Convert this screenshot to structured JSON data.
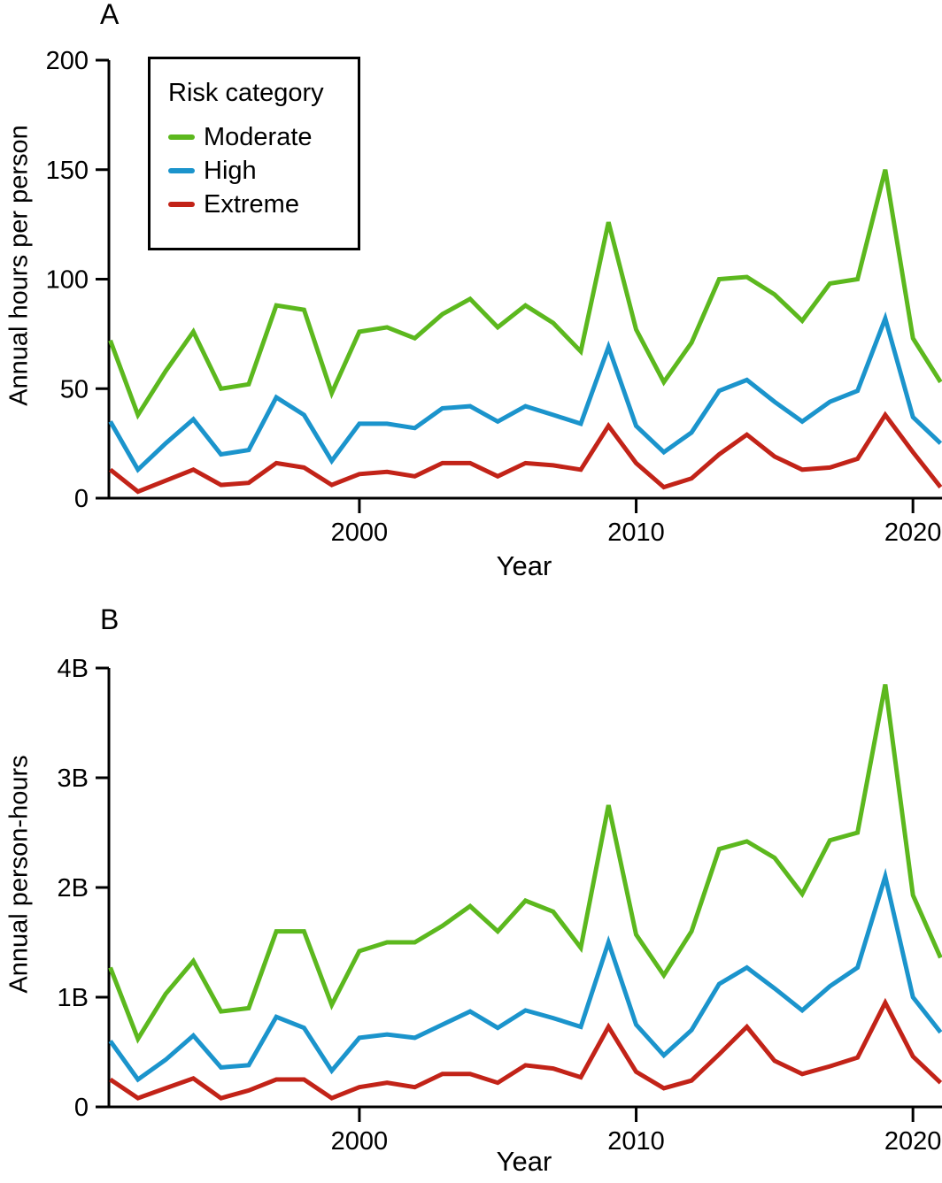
{
  "figure": {
    "background": "#ffffff",
    "text_color": "#000000"
  },
  "panels": [
    {
      "label": "A",
      "y_axis_title": "Annual hours per person",
      "x_axis_title": "Year"
    },
    {
      "label": "B",
      "y_axis_title": "Annual person-hours",
      "x_axis_title": "Year"
    }
  ],
  "legend": {
    "title": "Risk category",
    "items": [
      {
        "label": "Moderate",
        "color": "#5cb81e"
      },
      {
        "label": "High",
        "color": "#1b94cc"
      },
      {
        "label": "Extreme",
        "color": "#c22318"
      }
    ]
  },
  "chart_data": [
    {
      "type": "line",
      "panel": "A",
      "title": "",
      "xlabel": "Year",
      "ylabel": "Annual hours per person",
      "grid": false,
      "legend_position": "top-left",
      "xlim": [
        1990.95,
        2021.05
      ],
      "ylim": [
        0,
        200
      ],
      "xticks": [
        {
          "value": 2000,
          "label": "2000"
        },
        {
          "value": 2010,
          "label": "2010"
        },
        {
          "value": 2020,
          "label": "2020"
        }
      ],
      "yticks": [
        {
          "value": 0,
          "label": "0"
        },
        {
          "value": 50,
          "label": "50"
        },
        {
          "value": 100,
          "label": "100"
        },
        {
          "value": 150,
          "label": "150"
        },
        {
          "value": 200,
          "label": "200"
        }
      ],
      "x": [
        1991,
        1992,
        1993,
        1994,
        1995,
        1996,
        1997,
        1998,
        1999,
        2000,
        2001,
        2002,
        2003,
        2004,
        2005,
        2006,
        2007,
        2008,
        2009,
        2010,
        2011,
        2012,
        2013,
        2014,
        2015,
        2016,
        2017,
        2018,
        2019,
        2020,
        2021
      ],
      "series": [
        {
          "name": "Moderate",
          "color": "#5cb81e",
          "values": [
            72,
            38,
            58,
            76,
            50,
            52,
            88,
            86,
            48,
            76,
            78,
            73,
            84,
            91,
            78,
            88,
            80,
            67,
            126,
            77,
            53,
            71,
            100,
            101,
            93,
            81,
            98,
            100,
            150,
            73,
            53
          ]
        },
        {
          "name": "High",
          "color": "#1b94cc",
          "values": [
            35,
            13,
            25,
            36,
            20,
            22,
            46,
            38,
            17,
            34,
            34,
            32,
            41,
            42,
            35,
            42,
            38,
            34,
            69,
            33,
            21,
            30,
            49,
            54,
            44,
            35,
            44,
            49,
            82,
            37,
            25
          ]
        },
        {
          "name": "Extreme",
          "color": "#c22318",
          "values": [
            13,
            3,
            8,
            13,
            6,
            7,
            16,
            14,
            6,
            11,
            12,
            10,
            16,
            16,
            10,
            16,
            15,
            13,
            33,
            16,
            5,
            9,
            20,
            29,
            19,
            13,
            14,
            18,
            38,
            21,
            5
          ]
        }
      ]
    },
    {
      "type": "line",
      "panel": "B",
      "title": "",
      "xlabel": "Year",
      "ylabel": "Annual person-hours",
      "unit": "billions",
      "grid": false,
      "xlim": [
        1990.95,
        2021.05
      ],
      "ylim": [
        0,
        4
      ],
      "xticks": [
        {
          "value": 2000,
          "label": "2000"
        },
        {
          "value": 2010,
          "label": "2010"
        },
        {
          "value": 2020,
          "label": "2020"
        }
      ],
      "yticks": [
        {
          "value": 0,
          "label": "0"
        },
        {
          "value": 1,
          "label": "1B"
        },
        {
          "value": 2,
          "label": "2B"
        },
        {
          "value": 3,
          "label": "3B"
        },
        {
          "value": 4,
          "label": "4B"
        }
      ],
      "x": [
        1991,
        1992,
        1993,
        1994,
        1995,
        1996,
        1997,
        1998,
        1999,
        2000,
        2001,
        2002,
        2003,
        2004,
        2005,
        2006,
        2007,
        2008,
        2009,
        2010,
        2011,
        2012,
        2013,
        2014,
        2015,
        2016,
        2017,
        2018,
        2019,
        2020,
        2021
      ],
      "series": [
        {
          "name": "Moderate",
          "color": "#5cb81e",
          "values": [
            1.27,
            0.62,
            1.03,
            1.33,
            0.87,
            0.9,
            1.6,
            1.6,
            0.93,
            1.42,
            1.5,
            1.5,
            1.65,
            1.83,
            1.6,
            1.88,
            1.78,
            1.45,
            2.75,
            1.57,
            1.2,
            1.6,
            2.35,
            2.42,
            2.27,
            1.94,
            2.43,
            2.5,
            3.85,
            1.93,
            1.36
          ]
        },
        {
          "name": "High",
          "color": "#1b94cc",
          "values": [
            0.6,
            0.25,
            0.43,
            0.65,
            0.36,
            0.38,
            0.82,
            0.72,
            0.33,
            0.63,
            0.66,
            0.63,
            0.75,
            0.87,
            0.72,
            0.88,
            0.81,
            0.73,
            1.5,
            0.75,
            0.47,
            0.7,
            1.12,
            1.27,
            1.08,
            0.88,
            1.1,
            1.27,
            2.1,
            1.0,
            0.68
          ]
        },
        {
          "name": "Extreme",
          "color": "#c22318",
          "values": [
            0.25,
            0.08,
            0.17,
            0.26,
            0.08,
            0.15,
            0.25,
            0.25,
            0.08,
            0.18,
            0.22,
            0.18,
            0.3,
            0.3,
            0.22,
            0.38,
            0.35,
            0.27,
            0.73,
            0.32,
            0.17,
            0.24,
            0.48,
            0.73,
            0.42,
            0.3,
            0.37,
            0.45,
            0.95,
            0.46,
            0.22
          ]
        }
      ]
    }
  ]
}
